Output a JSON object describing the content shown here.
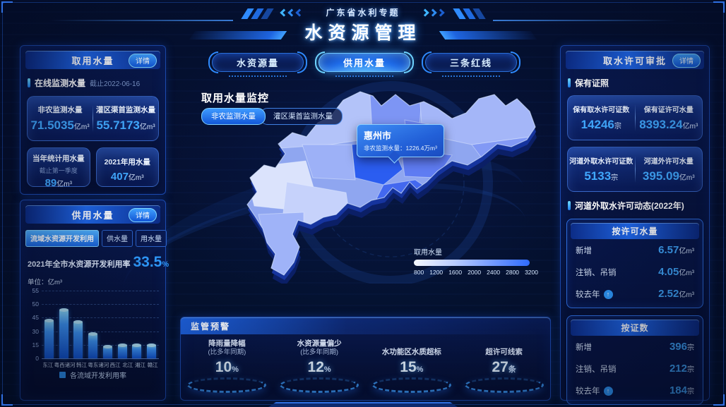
{
  "colors": {
    "accent": "#2f9bff",
    "cyan": "#3fb4ff",
    "panel_border": "#1c4bb0",
    "number_blue": "#41a9ff",
    "map_highlight": "#2b5df0"
  },
  "header": {
    "subtitle": "广东省水利专题",
    "title": "水资源管理"
  },
  "left": {
    "intake": {
      "title": "取用水量",
      "detail_label": "详情",
      "section_label": "在线监测水量",
      "section_date": "截止2022-06-16",
      "cards": [
        {
          "label": "非农监测水量",
          "value": "71.5035",
          "unit": "亿m³"
        },
        {
          "label": "灌区渠首监测水量",
          "value": "55.7173",
          "unit": "亿m³"
        },
        {
          "label": "当年统计用水量",
          "sub": "截止第一季度",
          "value": "89",
          "unit": "亿m³"
        },
        {
          "label": "2021年用水量",
          "sub": "",
          "value": "407",
          "unit": "亿m³"
        }
      ]
    },
    "supply": {
      "title": "供用水量",
      "detail_label": "详情",
      "tabs": [
        {
          "label": "流域水资源开发利用",
          "active": true
        },
        {
          "label": "供水量",
          "active": false
        },
        {
          "label": "用水量",
          "active": false
        }
      ],
      "rate_label": "2021年全市水资源开发利用率",
      "rate_value": "33.5",
      "rate_unit": "%",
      "unit_label": "单位：亿m³"
    }
  },
  "chart_data": {
    "type": "bar",
    "title": "各流域开发利用率",
    "ylabel": "亿m³",
    "categories": [
      "东江",
      "粤西诸河",
      "韩江",
      "粤东诸河",
      "西江",
      "北江",
      "湘江",
      "赣江"
    ],
    "values": [
      42,
      48,
      41,
      27,
      13,
      15,
      15,
      15
    ],
    "y_ticks": [
      0,
      15,
      30,
      45,
      50,
      55
    ],
    "legend": "各流域开发利用率",
    "grid": "dashed horizontal"
  },
  "center": {
    "tabs": [
      {
        "label": "水资源量",
        "active": false
      },
      {
        "label": "供用水量",
        "active": true
      },
      {
        "label": "三条红线",
        "active": false
      }
    ],
    "map": {
      "title": "取用水量监控",
      "tabs": [
        {
          "label": "非农监测水量",
          "active": true
        },
        {
          "label": "灌区渠首监测水量",
          "active": false
        }
      ],
      "tooltip": {
        "city": "惠州市",
        "label": "非农监测水量：",
        "value": "1226.4万m³"
      },
      "legend": {
        "title": "取用水量",
        "ticks": [
          "800",
          "1200",
          "1600",
          "2000",
          "2400",
          "2800",
          "3200"
        ]
      }
    },
    "warning": {
      "title": "监管预警",
      "items": [
        {
          "label": "降雨量降幅",
          "sub": "(比多年同期)",
          "value": "10",
          "unit": "%"
        },
        {
          "label": "水资源量偏少",
          "sub": "(比多年同期)",
          "value": "12",
          "unit": "%"
        },
        {
          "label": "水功能区水质超标",
          "sub": "",
          "value": "15",
          "unit": "%"
        },
        {
          "label": "超许可线索",
          "sub": "",
          "value": "27",
          "unit": "条"
        }
      ]
    }
  },
  "right": {
    "title": "取水许可审批",
    "detail_label": "详情",
    "license_section": "保有证照",
    "license_cards": [
      {
        "label": "保有取水许可证数",
        "value": "14246",
        "unit": "宗"
      },
      {
        "label": "保有证许可水量",
        "value": "8393.24",
        "unit": "亿m³"
      },
      {
        "label": "河道外取水许可证数",
        "value": "5133",
        "unit": "宗"
      },
      {
        "label": "河道外许可水量",
        "value": "395.09",
        "unit": "亿m³"
      }
    ],
    "dynamic_section": "河道外取水许可动态(2022年)",
    "by_volume": {
      "title": "按许可水量",
      "rows": [
        {
          "label": "新增",
          "arrow": false,
          "value": "6.57",
          "unit": "亿m³"
        },
        {
          "label": "注销、吊销",
          "arrow": false,
          "value": "4.05",
          "unit": "亿m³"
        },
        {
          "label": "较去年",
          "arrow": true,
          "value": "2.52",
          "unit": "亿m³"
        }
      ]
    },
    "by_count": {
      "title": "按证数",
      "rows": [
        {
          "label": "新增",
          "arrow": false,
          "value": "396",
          "unit": "宗"
        },
        {
          "label": "注销、吊销",
          "arrow": false,
          "value": "212",
          "unit": "宗"
        },
        {
          "label": "较去年",
          "arrow": true,
          "value": "184",
          "unit": "宗"
        }
      ]
    }
  }
}
